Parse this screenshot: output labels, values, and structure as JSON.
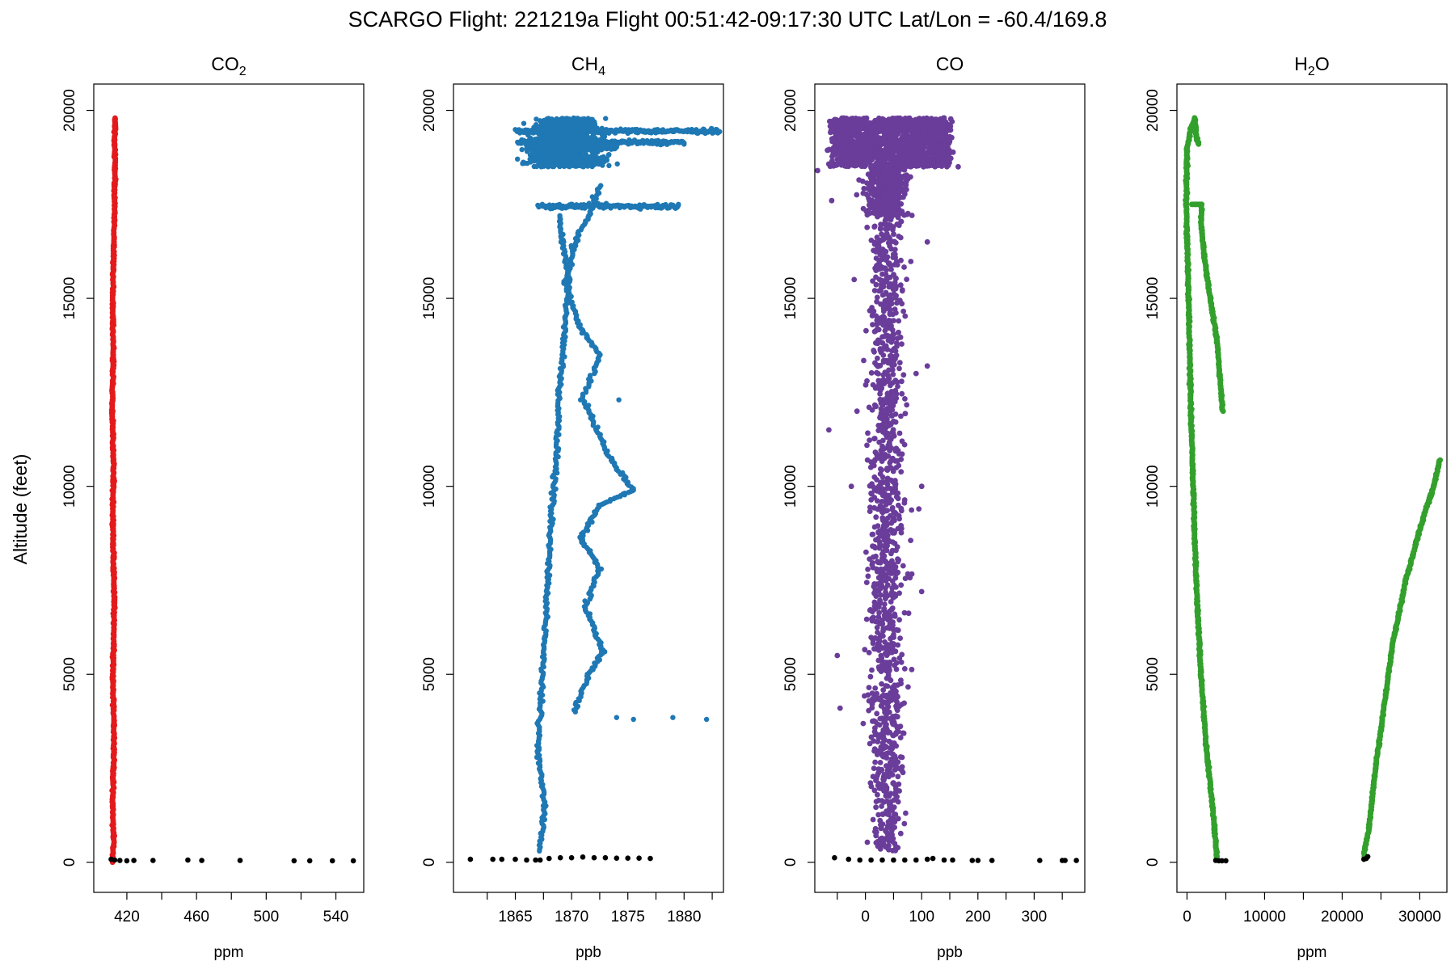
{
  "title": "SCARGO Flight: 221219a  Flight  00:51:42-09:17:30 UTC  Lat/Lon = -60.4/169.8",
  "ylabel": "Altitude (feet)",
  "colors": {
    "co2": "#e31a1c",
    "ch4": "#1f78b4",
    "co": "#6a3d9a",
    "h2o": "#33a02c",
    "ground": "#000000"
  },
  "chart_data": [
    {
      "type": "scatter",
      "key": "co2",
      "title": "CO",
      "title_sub": "2",
      "xlabel": "ppm",
      "xlim": [
        401,
        556
      ],
      "ylim": [
        -800,
        20700
      ],
      "xticks": [
        420,
        460,
        500,
        540
      ],
      "yticks": [
        0,
        5000,
        10000,
        15000,
        20000
      ],
      "profile": [
        [
          411.5,
          0
        ],
        [
          412.5,
          500
        ],
        [
          411.8,
          1500
        ],
        [
          412.6,
          3000
        ],
        [
          412.1,
          5000
        ],
        [
          412.8,
          7000
        ],
        [
          411.9,
          9000
        ],
        [
          412.4,
          10500
        ],
        [
          411.6,
          12000
        ],
        [
          412.2,
          13500
        ],
        [
          411.8,
          15000
        ],
        [
          412.5,
          16500
        ],
        [
          412.9,
          17500
        ],
        [
          413.2,
          18500
        ],
        [
          413.0,
          19200
        ],
        [
          413.3,
          19800
        ]
      ],
      "ground_points": [
        [
          411,
          80
        ],
        [
          413,
          60
        ],
        [
          416,
          50
        ],
        [
          420,
          40
        ],
        [
          424,
          50
        ],
        [
          435,
          50
        ],
        [
          455,
          60
        ],
        [
          463,
          50
        ],
        [
          485,
          50
        ],
        [
          516,
          40
        ],
        [
          525,
          40
        ],
        [
          538,
          40
        ],
        [
          550,
          40
        ]
      ]
    },
    {
      "type": "scatter",
      "key": "ch4",
      "title": "CH",
      "title_sub": "4",
      "xlabel": "ppb",
      "xlim": [
        1859.5,
        1883.5
      ],
      "ylim": [
        -800,
        20700
      ],
      "xticks": [
        1865,
        1870,
        1875,
        1880
      ],
      "yticks": [
        0,
        5000,
        10000,
        15000,
        20000
      ],
      "profile_main": [
        [
          1867.2,
          300
        ],
        [
          1867.6,
          1500
        ],
        [
          1867.0,
          3000
        ],
        [
          1867.3,
          4500
        ],
        [
          1867.6,
          6000
        ],
        [
          1868.0,
          8000
        ],
        [
          1868.3,
          9500
        ],
        [
          1868.7,
          11000
        ],
        [
          1868.9,
          12500
        ],
        [
          1869.2,
          13500
        ],
        [
          1869.5,
          14500
        ],
        [
          1869.8,
          15500
        ],
        [
          1869.2,
          16500
        ],
        [
          1868.9,
          17200
        ]
      ],
      "profile_secondary": [
        [
          1870.2,
          4000
        ],
        [
          1871.5,
          5000
        ],
        [
          1872.8,
          5600
        ],
        [
          1871.2,
          6800
        ],
        [
          1872.5,
          7800
        ],
        [
          1870.8,
          8600
        ],
        [
          1872.5,
          9500
        ],
        [
          1875.5,
          9900
        ],
        [
          1873.5,
          10700
        ],
        [
          1871.0,
          12300
        ],
        [
          1872.5,
          13500
        ],
        [
          1870.8,
          14200
        ],
        [
          1869.5,
          15400
        ],
        [
          1870.2,
          16400
        ],
        [
          1871.5,
          17200
        ],
        [
          1872.5,
          18000
        ]
      ],
      "upper_band": {
        "alt_min": 18500,
        "alt_max": 19800,
        "x_min": 1865,
        "x_max": 1878
      },
      "spikes": [
        [
          1883.0,
          19400
        ],
        [
          1880.0,
          19100
        ],
        [
          1879.5,
          17500
        ],
        [
          1873.0,
          18700
        ],
        [
          1882.0,
          3800
        ],
        [
          1879.0,
          3850
        ],
        [
          1875.5,
          3800
        ],
        [
          1874.0,
          3850
        ],
        [
          1874.2,
          12300
        ]
      ],
      "ground_points": [
        [
          1861,
          80
        ],
        [
          1863,
          80
        ],
        [
          1863.8,
          80
        ],
        [
          1865,
          80
        ],
        [
          1866,
          60
        ],
        [
          1866.8,
          60
        ],
        [
          1867.2,
          60
        ],
        [
          1868,
          100
        ],
        [
          1869,
          120
        ],
        [
          1870,
          120
        ],
        [
          1871,
          140
        ],
        [
          1872,
          120
        ],
        [
          1873,
          120
        ],
        [
          1874,
          110
        ],
        [
          1875,
          110
        ],
        [
          1876,
          110
        ],
        [
          1877,
          100
        ]
      ]
    },
    {
      "type": "scatter",
      "key": "co",
      "title": "CO",
      "title_sub": "",
      "xlabel": "ppb",
      "xlim": [
        -90,
        390
      ],
      "ylim": [
        -800,
        20700
      ],
      "xticks": [
        0,
        100,
        200,
        300
      ],
      "yticks": [
        0,
        5000,
        10000,
        15000,
        20000
      ],
      "upper_band": {
        "alt_min": 18500,
        "alt_max": 19800,
        "x_min": -70,
        "x_max": 165
      },
      "core_center": 38,
      "core_spread": 22,
      "outliers": [
        [
          -65,
          11500
        ],
        [
          -50,
          5500
        ],
        [
          -45,
          4100
        ],
        [
          -15,
          12000
        ],
        [
          -25,
          10000
        ],
        [
          -20,
          15500
        ],
        [
          90,
          13000
        ],
        [
          100,
          10000
        ],
        [
          110,
          13200
        ],
        [
          95,
          9400
        ],
        [
          150,
          19300
        ],
        [
          165,
          18500
        ],
        [
          -85,
          18400
        ],
        [
          -60,
          17600
        ],
        [
          110,
          16500
        ],
        [
          100,
          7200
        ]
      ],
      "ground_points": [
        [
          -55,
          120
        ],
        [
          -30,
          80
        ],
        [
          -10,
          60
        ],
        [
          10,
          60
        ],
        [
          30,
          60
        ],
        [
          50,
          60
        ],
        [
          70,
          60
        ],
        [
          90,
          60
        ],
        [
          110,
          80
        ],
        [
          120,
          100
        ],
        [
          140,
          60
        ],
        [
          155,
          60
        ],
        [
          190,
          50
        ],
        [
          200,
          50
        ],
        [
          225,
          50
        ],
        [
          310,
          50
        ],
        [
          350,
          50
        ],
        [
          355,
          50
        ],
        [
          375,
          50
        ]
      ]
    },
    {
      "type": "scatter",
      "key": "h2o",
      "title": "H",
      "title_sub": "2",
      "title_after": "O",
      "xlabel": "ppm",
      "xlim": [
        -1300,
        33500
      ],
      "ylim": [
        -800,
        20700
      ],
      "xticks": [
        0,
        10000,
        20000,
        30000
      ],
      "yticks": [
        0,
        5000,
        10000,
        15000,
        20000
      ],
      "profile_descent": [
        [
          3900,
          80
        ],
        [
          3600,
          700
        ],
        [
          3300,
          1500
        ],
        [
          2500,
          3000
        ],
        [
          1800,
          5000
        ],
        [
          1300,
          7000
        ],
        [
          1000,
          8500
        ],
        [
          800,
          10000
        ],
        [
          500,
          12000
        ],
        [
          200,
          15000
        ],
        [
          -100,
          17500
        ],
        [
          0,
          19000
        ],
        [
          500,
          19500
        ],
        [
          1000,
          19800
        ],
        [
          1200,
          19300
        ],
        [
          1500,
          19100
        ]
      ],
      "profile_upper_branch": [
        [
          600,
          17500
        ],
        [
          1900,
          17500
        ],
        [
          1800,
          17000
        ],
        [
          2300,
          16000
        ],
        [
          3000,
          15000
        ],
        [
          3900,
          13800
        ],
        [
          4600,
          12000
        ]
      ],
      "profile_ascent": [
        [
          22800,
          150
        ],
        [
          23500,
          1000
        ],
        [
          24300,
          2500
        ],
        [
          25300,
          4000
        ],
        [
          26500,
          5800
        ],
        [
          28200,
          7500
        ],
        [
          30200,
          9000
        ],
        [
          31800,
          10000
        ],
        [
          32600,
          10700
        ]
      ],
      "ground_points": [
        [
          3700,
          50
        ],
        [
          4100,
          40
        ],
        [
          4500,
          40
        ],
        [
          5000,
          40
        ],
        [
          22800,
          80
        ],
        [
          23100,
          100
        ],
        [
          23300,
          150
        ]
      ]
    }
  ]
}
